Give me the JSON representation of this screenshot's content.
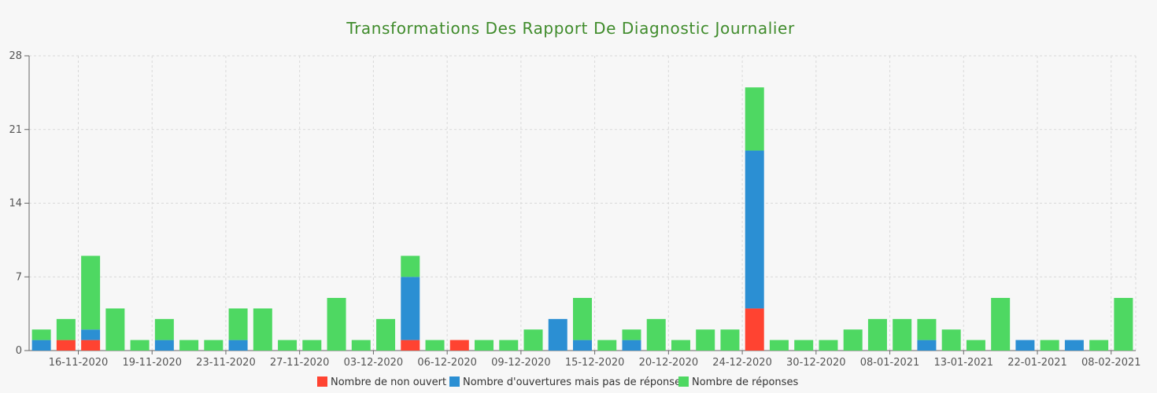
{
  "chart_data": {
    "type": "bar",
    "stacked": true,
    "title": "Transformations Des Rapport De Diagnostic Journalier",
    "xlabel": "",
    "ylabel": "",
    "ylim": [
      0,
      28
    ],
    "yticks": [
      0,
      7,
      14,
      21,
      28
    ],
    "grid": true,
    "legend_position": "bottom",
    "x_tick_labels": [
      "16-11-2020",
      "19-11-2020",
      "23-11-2020",
      "27-11-2020",
      "03-12-2020",
      "06-12-2020",
      "09-12-2020",
      "15-12-2020",
      "20-12-2020",
      "24-12-2020",
      "30-12-2020",
      "08-01-2021",
      "13-01-2021",
      "22-01-2021",
      "08-02-2021"
    ],
    "x_tick_after_bar": [
      1.5,
      4.5,
      7.5,
      10.5,
      13.5,
      16.5,
      19.5,
      22.5,
      25.5,
      28.5,
      31.5,
      34.5,
      37.5,
      40.5,
      43.5
    ],
    "bar_count": 45,
    "series": [
      {
        "name": "Nombre de non ouvert",
        "color": "#ff4331",
        "values": [
          0,
          1,
          1,
          0,
          0,
          0,
          0,
          0,
          0,
          0,
          0,
          0,
          0,
          0,
          0,
          1,
          0,
          1,
          0,
          0,
          0,
          0,
          0,
          0,
          0,
          0,
          0,
          0,
          0,
          4,
          0,
          0,
          0,
          0,
          0,
          0,
          0,
          0,
          0,
          0,
          0,
          0,
          0,
          0,
          0
        ]
      },
      {
        "name": "Nombre d'ouvertures mais pas de réponses",
        "color": "#2b8fd3",
        "values": [
          1,
          0,
          1,
          0,
          0,
          1,
          0,
          0,
          1,
          0,
          0,
          0,
          0,
          0,
          0,
          6,
          0,
          0,
          0,
          0,
          0,
          3,
          1,
          0,
          1,
          0,
          0,
          0,
          0,
          15,
          0,
          0,
          0,
          0,
          0,
          0,
          1,
          0,
          0,
          0,
          1,
          0,
          1,
          0,
          0
        ]
      },
      {
        "name": "Nombre de réponses",
        "color": "#4ed862",
        "values": [
          1,
          2,
          7,
          4,
          1,
          2,
          1,
          1,
          3,
          4,
          1,
          1,
          5,
          1,
          3,
          2,
          1,
          0,
          1,
          1,
          2,
          0,
          4,
          1,
          1,
          3,
          1,
          2,
          2,
          6,
          1,
          1,
          1,
          2,
          3,
          3,
          2,
          2,
          1,
          5,
          0,
          1,
          0,
          1,
          5
        ]
      }
    ]
  }
}
